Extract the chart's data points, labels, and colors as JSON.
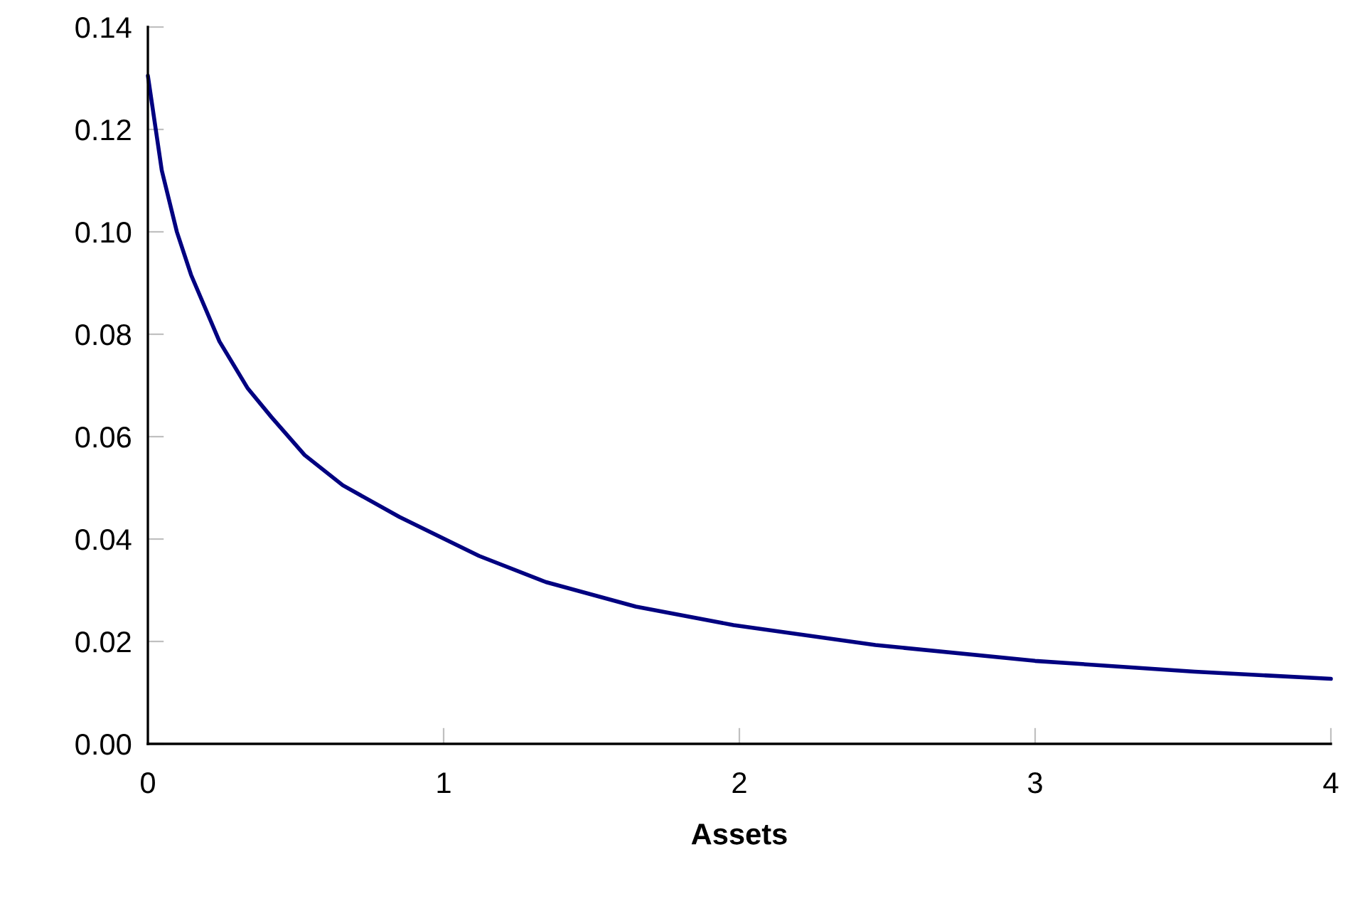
{
  "chart_data": {
    "type": "line",
    "xlabel": "Assets",
    "xlim": [
      0,
      4
    ],
    "ylim": [
      0,
      0.14
    ],
    "xticks": [
      0,
      1,
      2,
      3,
      4
    ],
    "yticks": [
      {
        "value": 0,
        "label": "0.00"
      },
      {
        "value": 0.02,
        "label": "0.02"
      },
      {
        "value": 0.04,
        "label": "0.04"
      },
      {
        "value": 0.06,
        "label": "0.06"
      },
      {
        "value": 0.08,
        "label": "0.08"
      },
      {
        "value": 0.1,
        "label": "0.10"
      },
      {
        "value": 0.12,
        "label": "0.12"
      },
      {
        "value": 0.14,
        "label": "0.14"
      }
    ],
    "marker": "none",
    "line_style": "solid",
    "series": [
      {
        "color": "#000080",
        "x": [
          0,
          0.047,
          0.098,
          0.146,
          0.242,
          0.338,
          0.418,
          0.53,
          0.659,
          0.851,
          1.12,
          1.346,
          1.65,
          1.98,
          2.46,
          3.0,
          3.54,
          4.0
        ],
        "values": [
          0.1305,
          0.112,
          0.1,
          0.0916,
          0.0786,
          0.0694,
          0.0638,
          0.0564,
          0.0505,
          0.0443,
          0.0367,
          0.0316,
          0.0268,
          0.0232,
          0.0193,
          0.0162,
          0.0141,
          0.0127
        ]
      }
    ]
  }
}
